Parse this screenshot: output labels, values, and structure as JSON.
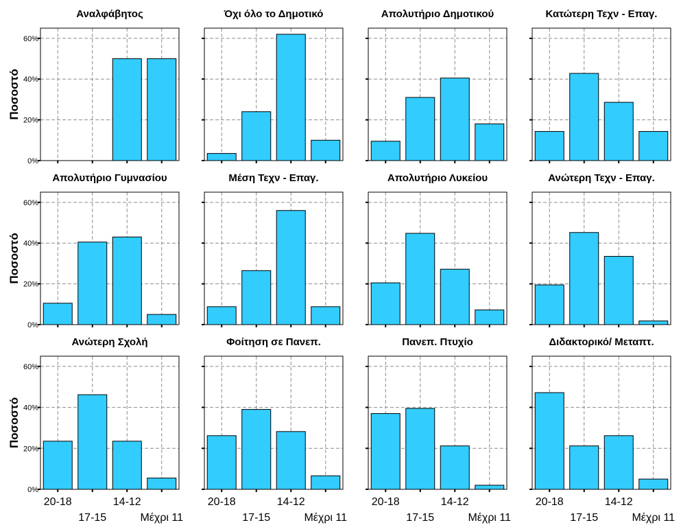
{
  "colors": {
    "bar": "#33ccff",
    "grid": "#8c8c8c",
    "frame": "#000000"
  },
  "chart_data": [
    {
      "type": "bar",
      "title": "Αναλφάβητος",
      "categories": [
        "20-18",
        "17-15",
        "14-12",
        "Μέχρι 11"
      ],
      "values": [
        0,
        0,
        50,
        50
      ],
      "ylabel": "Ποσοστό",
      "ylim": [
        0,
        65
      ],
      "yticks": [
        "0%",
        "20%",
        "40%",
        "60%"
      ],
      "grid": true
    },
    {
      "type": "bar",
      "title": "Όχι όλο το Δημοτικό",
      "categories": [
        "20-18",
        "17-15",
        "14-12",
        "Μέχρι 11"
      ],
      "values": [
        3.5,
        24,
        62,
        10
      ],
      "ylabel": "",
      "ylim": [
        0,
        65
      ],
      "yticks": [],
      "grid": true
    },
    {
      "type": "bar",
      "title": "Απολυτήριο Δημοτικού",
      "categories": [
        "20-18",
        "17-15",
        "14-12",
        "Μέχρι 11"
      ],
      "values": [
        9.5,
        31,
        40.5,
        18
      ],
      "ylabel": "",
      "ylim": [
        0,
        65
      ],
      "yticks": [],
      "grid": true
    },
    {
      "type": "bar",
      "title": "Κατώτερη Τεχν - Επαγ.",
      "categories": [
        "20-18",
        "17-15",
        "14-12",
        "Μέχρι 11"
      ],
      "values": [
        14.3,
        42.8,
        28.6,
        14.3
      ],
      "ylabel": "",
      "ylim": [
        0,
        65
      ],
      "yticks": [],
      "grid": true
    },
    {
      "type": "bar",
      "title": "Απολυτήριο Γυμνασίου",
      "categories": [
        "20-18",
        "17-15",
        "14-12",
        "Μέχρι 11"
      ],
      "values": [
        10.5,
        40.5,
        43,
        5
      ],
      "ylabel": "Ποσοστό",
      "ylim": [
        0,
        65
      ],
      "yticks": [
        "0%",
        "20%",
        "40%",
        "60%"
      ],
      "grid": true
    },
    {
      "type": "bar",
      "title": "Μέση Τεχν - Επαγ.",
      "categories": [
        "20-18",
        "17-15",
        "14-12",
        "Μέχρι 11"
      ],
      "values": [
        8.8,
        26.5,
        56,
        8.8
      ],
      "ylabel": "",
      "ylim": [
        0,
        65
      ],
      "yticks": [],
      "grid": true
    },
    {
      "type": "bar",
      "title": "Απολυτήριο Λυκείου",
      "categories": [
        "20-18",
        "17-15",
        "14-12",
        "Μέχρι 11"
      ],
      "values": [
        20.5,
        44.8,
        27.2,
        7.2
      ],
      "ylabel": "",
      "ylim": [
        0,
        65
      ],
      "yticks": [],
      "grid": true
    },
    {
      "type": "bar",
      "title": "Ανώτερη Τεχν - Επαγ.",
      "categories": [
        "20-18",
        "17-15",
        "14-12",
        "Μέχρι 11"
      ],
      "values": [
        19.5,
        45.2,
        33.5,
        1.8
      ],
      "ylabel": "",
      "ylim": [
        0,
        65
      ],
      "yticks": [],
      "grid": true
    },
    {
      "type": "bar",
      "title": "Ανώτερη Σχολή",
      "categories": [
        "20-18",
        "17-15",
        "14-12",
        "Μέχρι 11"
      ],
      "values": [
        23.5,
        46.2,
        23.5,
        5.5
      ],
      "ylabel": "Ποσοστό",
      "ylim": [
        0,
        65
      ],
      "yticks": [
        "0%",
        "20%",
        "40%",
        "60%"
      ],
      "grid": true
    },
    {
      "type": "bar",
      "title": "Φοίτηση σε Πανεπ.",
      "categories": [
        "20-18",
        "17-15",
        "14-12",
        "Μέχρι 11"
      ],
      "values": [
        26.2,
        39,
        28.2,
        6.6
      ],
      "ylabel": "",
      "ylim": [
        0,
        65
      ],
      "yticks": [],
      "grid": true
    },
    {
      "type": "bar",
      "title": "Πανεπ. Πτυχίο",
      "categories": [
        "20-18",
        "17-15",
        "14-12",
        "Μέχρι 11"
      ],
      "values": [
        37,
        39.5,
        21.2,
        2
      ],
      "ylabel": "",
      "ylim": [
        0,
        65
      ],
      "yticks": [],
      "grid": true
    },
    {
      "type": "bar",
      "title": "Διδακτορικό/ Μεταπτ.",
      "categories": [
        "20-18",
        "17-15",
        "14-12",
        "Μέχρι 11"
      ],
      "values": [
        47.2,
        21.2,
        26.2,
        5
      ],
      "ylabel": "",
      "ylim": [
        0,
        65
      ],
      "yticks": [],
      "grid": true
    }
  ]
}
